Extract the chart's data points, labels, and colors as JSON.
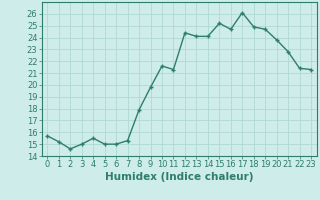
{
  "x": [
    0,
    1,
    2,
    3,
    4,
    5,
    6,
    7,
    8,
    9,
    10,
    11,
    12,
    13,
    14,
    15,
    16,
    17,
    18,
    19,
    20,
    21,
    22,
    23
  ],
  "y": [
    15.7,
    15.2,
    14.6,
    15.0,
    15.5,
    15.0,
    15.0,
    15.3,
    17.9,
    19.8,
    21.6,
    21.3,
    24.4,
    24.1,
    24.1,
    25.2,
    24.7,
    26.1,
    24.9,
    24.7,
    23.8,
    22.8,
    21.4,
    21.3
  ],
  "line_color": "#2e7d6e",
  "marker": "+",
  "marker_size": 3,
  "marker_lw": 1.0,
  "line_width": 1.0,
  "bg_color": "#ceecea",
  "grid_color": "#b0d8d4",
  "xlabel": "Humidex (Indice chaleur)",
  "xlabel_fontsize": 7.5,
  "tick_fontsize": 6,
  "ylim": [
    14,
    27
  ],
  "xlim": [
    -0.5,
    23.5
  ],
  "yticks": [
    14,
    15,
    16,
    17,
    18,
    19,
    20,
    21,
    22,
    23,
    24,
    25,
    26
  ],
  "xticks": [
    0,
    1,
    2,
    3,
    4,
    5,
    6,
    7,
    8,
    9,
    10,
    11,
    12,
    13,
    14,
    15,
    16,
    17,
    18,
    19,
    20,
    21,
    22,
    23
  ]
}
